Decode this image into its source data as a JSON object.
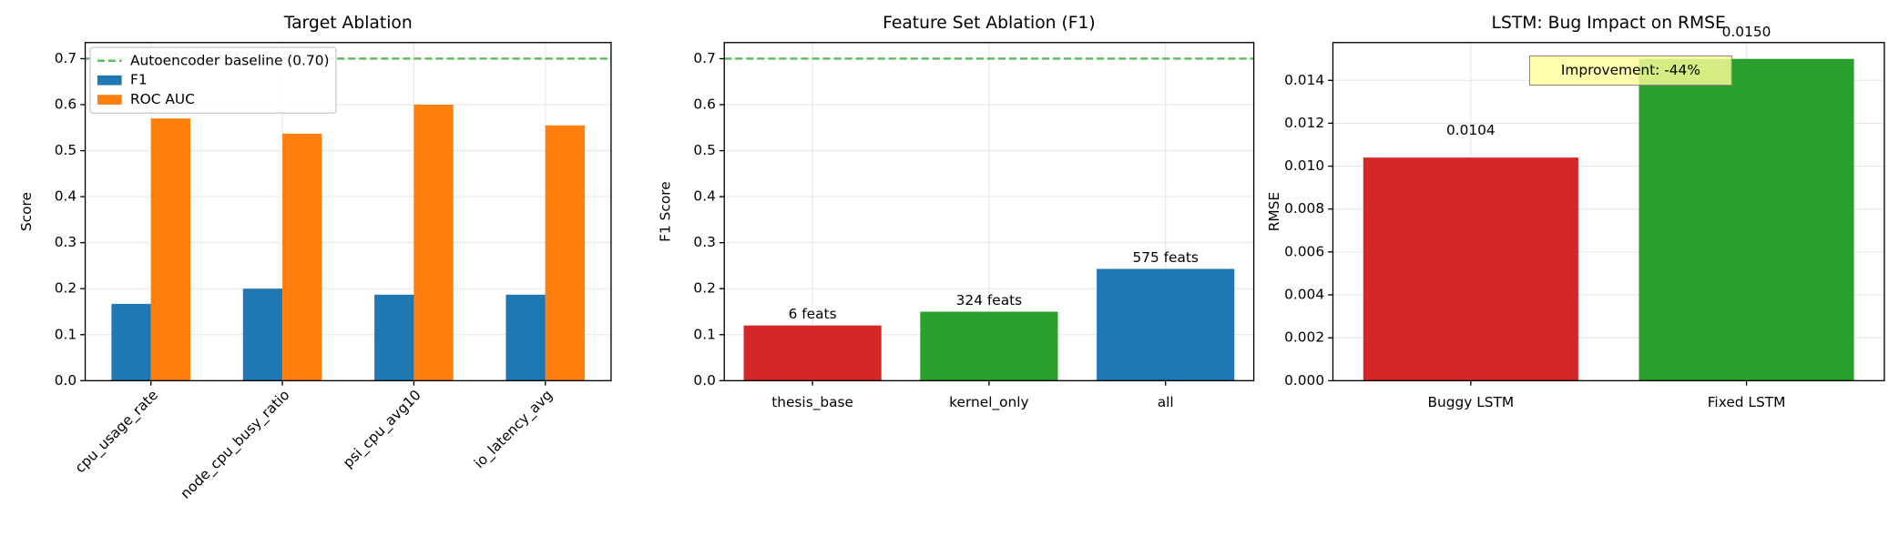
{
  "chart_data": [
    {
      "type": "grouped_bar",
      "title": "Target Ablation",
      "ylabel": "Score",
      "categories": [
        "cpu_usage_rate",
        "node_cpu_busy_ratio",
        "psi_cpu_avg10",
        "io_latency_avg"
      ],
      "series": [
        {
          "name": "F1",
          "color": "#1f77b4",
          "values": [
            0.167,
            0.2,
            0.187,
            0.187
          ]
        },
        {
          "name": "ROC AUC",
          "color": "#ff7f0e",
          "values": [
            0.57,
            0.537,
            0.6,
            0.555
          ]
        }
      ],
      "reference_line": {
        "value": 0.7,
        "label": "Autoencoder baseline (0.70)",
        "color": "#5cb85c"
      },
      "ylim": [
        0,
        0.735
      ],
      "yticks": [
        {
          "value": 0,
          "label": "0.0"
        },
        0.1,
        0.2,
        0.3,
        0.4,
        0.5,
        0.6,
        0.7
      ],
      "grid": true,
      "legend": "upper left",
      "rotate_xticks": true
    },
    {
      "type": "bar",
      "title": "Feature Set Ablation (F1)",
      "ylabel": "F1 Score",
      "categories": [
        "thesis_base",
        "kernel_only",
        "all"
      ],
      "values": [
        0.12,
        0.15,
        0.243
      ],
      "bar_labels": [
        "6 feats",
        "324 feats",
        "575 feats"
      ],
      "colors": [
        "#d62728",
        "#2ca02c",
        "#1f77b4"
      ],
      "reference_line": {
        "value": 0.7,
        "color": "#5cb85c"
      },
      "ylim": [
        0,
        0.735
      ],
      "yticks": [
        {
          "value": 0,
          "label": "0.0"
        },
        0.1,
        0.2,
        0.3,
        0.4,
        0.5,
        0.6,
        0.7
      ],
      "grid": true
    },
    {
      "type": "bar",
      "title": "LSTM: Bug Impact on RMSE",
      "ylabel": "RMSE",
      "categories": [
        "Buggy LSTM",
        "Fixed LSTM"
      ],
      "values": [
        0.0104,
        0.015
      ],
      "value_labels": [
        "0.0104",
        "0.0150"
      ],
      "colors": [
        "#d62728",
        "#2ca02c"
      ],
      "annotation": "Improvement: -44%",
      "ylim": [
        0,
        0.01576
      ],
      "yticks": [
        {
          "value": 0,
          "label": "0.000"
        },
        0.002,
        0.004,
        0.006,
        0.008,
        {
          "value": 0.01,
          "label": "0.010"
        },
        0.012,
        0.014
      ],
      "grid": true
    }
  ]
}
